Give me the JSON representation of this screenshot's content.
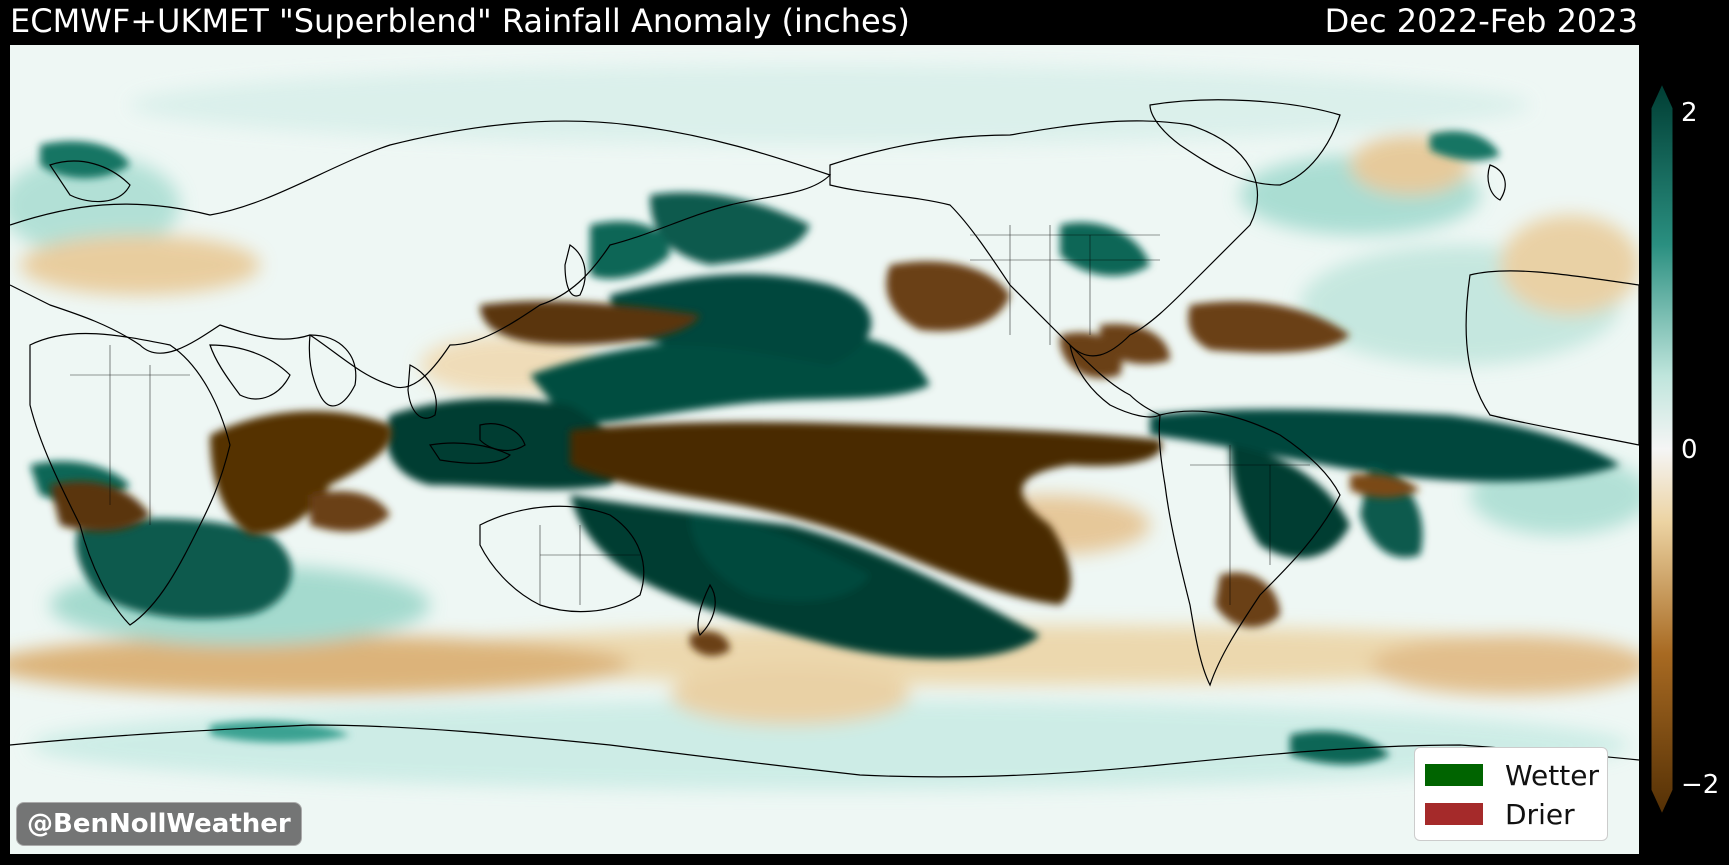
{
  "title": "ECMWF+UKMET \"Superblend\" Rainfall Anomaly (inches)",
  "period": "Dec 2022-Feb 2023",
  "credit": "@BenNollWeather",
  "legend": {
    "wetter": {
      "label": "Wetter",
      "color": "#006400"
    },
    "drier": {
      "label": "Drier",
      "color": "#a52a2a"
    }
  },
  "colorbar": {
    "ticks": [
      "2",
      "0",
      "−2"
    ],
    "min": -2,
    "max": 2,
    "colors": {
      "wet": "#003d33",
      "neutral": "#f5f5f5",
      "dry": "#543005"
    }
  },
  "map": {
    "projection": "Pacific-centered global",
    "land_outline_color": "#000000"
  }
}
